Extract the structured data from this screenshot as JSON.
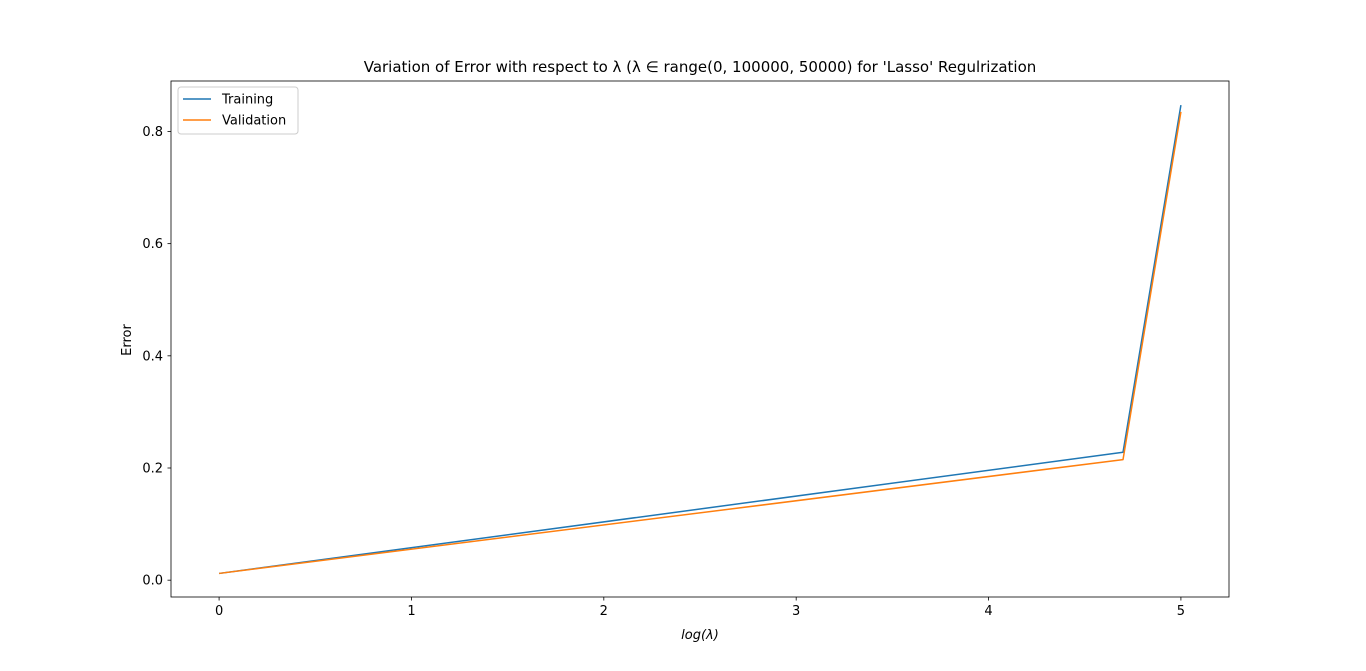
{
  "chart_data": {
    "type": "line",
    "title": "Variation of Error with respect to λ (λ ∈ range(0, 100000, 50000) for 'Lasso' Regulrization",
    "xlabel": "log(λ)",
    "ylabel": "Error",
    "xlim": [
      -0.25,
      5.25
    ],
    "ylim": [
      -0.03,
      0.89
    ],
    "xticks": [
      0,
      1,
      2,
      3,
      4,
      5
    ],
    "xtick_labels": [
      "0",
      "1",
      "2",
      "3",
      "4",
      "5"
    ],
    "yticks": [
      0.0,
      0.2,
      0.4,
      0.6,
      0.8
    ],
    "ytick_labels": [
      "0.0",
      "0.2",
      "0.4",
      "0.6",
      "0.8"
    ],
    "grid": false,
    "legend_position": "top-left",
    "x": [
      0,
      4.699,
      5
    ],
    "series": [
      {
        "name": "Training",
        "color": "#1f77b4",
        "values": [
          0.012,
          0.228,
          0.847
        ]
      },
      {
        "name": "Validation",
        "color": "#ff7f0e",
        "values": [
          0.012,
          0.215,
          0.835
        ]
      }
    ]
  }
}
